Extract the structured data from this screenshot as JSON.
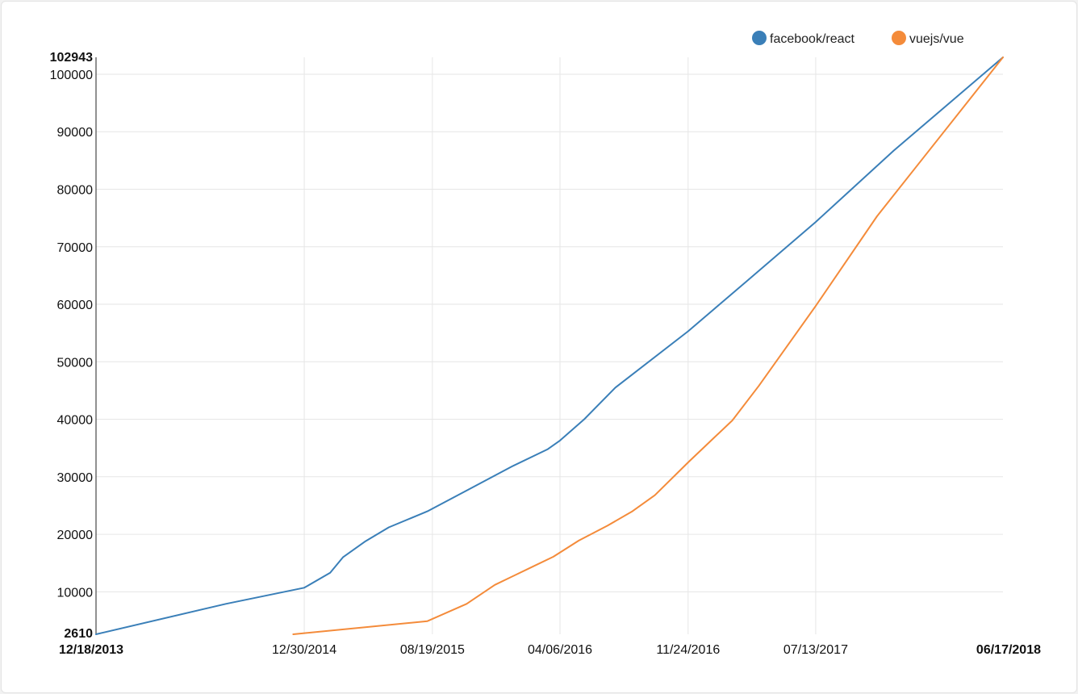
{
  "chart_data": {
    "type": "line",
    "title": "",
    "xlabel": "",
    "ylabel": "",
    "x_type": "date",
    "xlim": [
      "2013-12-18",
      "2018-06-17"
    ],
    "ylim": [
      2610,
      102943
    ],
    "grid": true,
    "legend_position": "top-right",
    "x_ticks": [
      {
        "date": "2013-12-18",
        "label": "12/18/2013",
        "bold": true
      },
      {
        "date": "2014-12-30",
        "label": "12/30/2014",
        "bold": false
      },
      {
        "date": "2015-08-19",
        "label": "08/19/2015",
        "bold": false
      },
      {
        "date": "2016-04-06",
        "label": "04/06/2016",
        "bold": false
      },
      {
        "date": "2016-11-24",
        "label": "11/24/2016",
        "bold": false
      },
      {
        "date": "2017-07-13",
        "label": "07/13/2017",
        "bold": false
      },
      {
        "date": "2018-06-17",
        "label": "06/17/2018",
        "bold": true
      }
    ],
    "y_ticks": [
      {
        "value": 2610,
        "label": "2610",
        "bold": true
      },
      {
        "value": 10000,
        "label": "10000",
        "bold": false
      },
      {
        "value": 20000,
        "label": "20000",
        "bold": false
      },
      {
        "value": 30000,
        "label": "30000",
        "bold": false
      },
      {
        "value": 40000,
        "label": "40000",
        "bold": false
      },
      {
        "value": 50000,
        "label": "50000",
        "bold": false
      },
      {
        "value": 60000,
        "label": "60000",
        "bold": false
      },
      {
        "value": 70000,
        "label": "70000",
        "bold": false
      },
      {
        "value": 80000,
        "label": "80000",
        "bold": false
      },
      {
        "value": 90000,
        "label": "90000",
        "bold": false
      },
      {
        "value": 100000,
        "label": "100000",
        "bold": false
      },
      {
        "value": 102943,
        "label": "102943",
        "bold": true
      }
    ],
    "series": [
      {
        "name": "facebook/react",
        "color": "#3a7fb8",
        "points": [
          [
            "2013-12-18",
            2610
          ],
          [
            "2014-08-10",
            7900
          ],
          [
            "2014-12-30",
            10700
          ],
          [
            "2015-02-15",
            13300
          ],
          [
            "2015-03-10",
            16000
          ],
          [
            "2015-04-20",
            18800
          ],
          [
            "2015-06-01",
            21200
          ],
          [
            "2015-08-10",
            24000
          ],
          [
            "2015-10-20",
            27600
          ],
          [
            "2016-01-10",
            31800
          ],
          [
            "2016-03-15",
            34800
          ],
          [
            "2016-04-06",
            36300
          ],
          [
            "2016-05-20",
            40000
          ],
          [
            "2016-07-15",
            45500
          ],
          [
            "2016-11-24",
            55300
          ],
          [
            "2017-03-10",
            64000
          ],
          [
            "2017-07-13",
            74300
          ],
          [
            "2017-12-01",
            86700
          ],
          [
            "2018-06-17",
            102943
          ]
        ]
      },
      {
        "name": "vuejs/vue",
        "color": "#f48b3a",
        "points": [
          [
            "2014-12-10",
            2610
          ],
          [
            "2015-08-10",
            4900
          ],
          [
            "2015-10-20",
            7900
          ],
          [
            "2015-12-10",
            11200
          ],
          [
            "2016-02-15",
            14300
          ],
          [
            "2016-03-25",
            16100
          ],
          [
            "2016-05-10",
            18900
          ],
          [
            "2016-07-01",
            21500
          ],
          [
            "2016-08-15",
            24000
          ],
          [
            "2016-09-25",
            26800
          ],
          [
            "2016-11-24",
            32500
          ],
          [
            "2017-01-10",
            36800
          ],
          [
            "2017-02-12",
            39800
          ],
          [
            "2017-04-01",
            45800
          ],
          [
            "2017-07-13",
            59700
          ],
          [
            "2017-11-01",
            75300
          ],
          [
            "2018-06-17",
            102943
          ]
        ]
      }
    ]
  }
}
